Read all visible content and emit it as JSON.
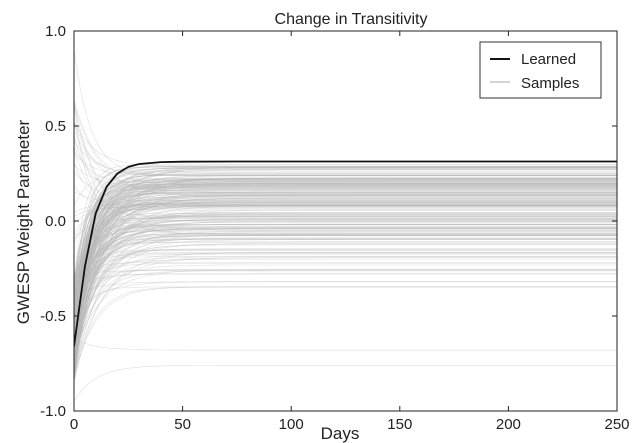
{
  "chart_data": {
    "type": "line",
    "title": "Change in Transitivity",
    "xlabel": "Days",
    "ylabel": "GWESP Weight Parameter",
    "xlim": [
      0,
      250
    ],
    "ylim": [
      -1.0,
      1.0
    ],
    "x_ticks": [
      "0",
      "50",
      "100",
      "150",
      "200",
      "250"
    ],
    "y_ticks": [
      "1.0",
      "0.5",
      "0.0",
      "-0.5",
      "-1.0"
    ],
    "grid": false,
    "legend_position": "top-right",
    "series": [
      {
        "name": "Learned",
        "color": "#111111",
        "x": [
          0,
          5,
          10,
          15,
          20,
          25,
          30,
          40,
          50,
          75,
          100,
          150,
          200,
          250
        ],
        "values": [
          -0.66,
          -0.24,
          0.04,
          0.18,
          0.25,
          0.285,
          0.3,
          0.31,
          0.312,
          0.313,
          0.313,
          0.313,
          0.313,
          0.313
        ]
      },
      {
        "name": "Samples",
        "color": "#b8b8b8",
        "x": [
          0,
          250
        ],
        "values": [
          [
            -0.95,
            -0.76
          ],
          [
            0.9,
            0.24
          ],
          [
            -0.62,
            -0.68
          ],
          [
            0.6,
            -0.05
          ],
          [
            -0.4,
            -0.32
          ]
        ]
      }
    ],
    "samples_summary": {
      "start_range": [
        -1.0,
        1.0
      ],
      "plateau_range": [
        -0.35,
        0.3
      ],
      "outlier_plateaus": [
        -0.68,
        -0.76
      ]
    }
  }
}
